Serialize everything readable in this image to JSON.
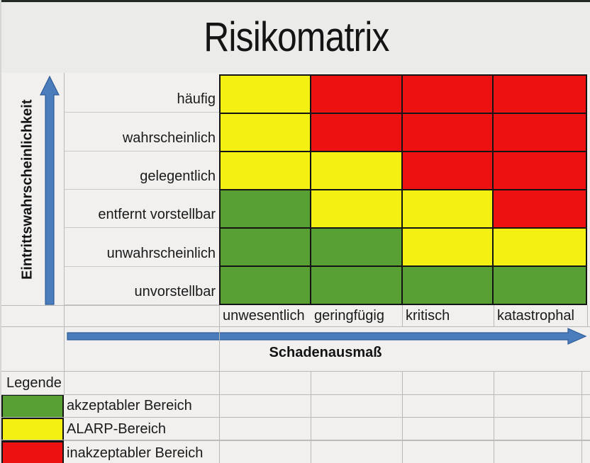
{
  "title": "Risikomatrix",
  "y_axis": {
    "label": "Eintrittswahrscheinlichkeit"
  },
  "x_axis": {
    "label": "Schadenausmaß"
  },
  "matrix": {
    "row_labels": [
      "häufig",
      "wahrscheinlich",
      "gelegentlich",
      "entfernt vorstellbar",
      "unwahrscheinlich",
      "unvorstellbar"
    ],
    "col_labels": [
      "unwesentlich",
      "geringfügig",
      "kritisch",
      "katastrophal"
    ],
    "cells": [
      [
        "yellow",
        "red",
        "red",
        "red"
      ],
      [
        "yellow",
        "red",
        "red",
        "red"
      ],
      [
        "yellow",
        "yellow",
        "red",
        "red"
      ],
      [
        "green",
        "yellow",
        "yellow",
        "red"
      ],
      [
        "green",
        "green",
        "yellow",
        "yellow"
      ],
      [
        "green",
        "green",
        "green",
        "green"
      ]
    ]
  },
  "legend": {
    "title": "Legende",
    "items": [
      {
        "color_key": "green",
        "label": "akzeptabler Bereich"
      },
      {
        "color_key": "yellow",
        "label": "ALARP-Bereich"
      },
      {
        "color_key": "red",
        "label": "inakzeptabler Bereich"
      }
    ]
  },
  "colors": {
    "green": "#58a033",
    "yellow": "#f4f011",
    "red": "#ee1111",
    "arrow_blue": "#4b7cbb",
    "arrow_edge": "#2e5d98"
  },
  "chart_data": {
    "type": "heatmap",
    "title": "Risikomatrix",
    "xlabel": "Schadenausmaß",
    "ylabel": "Eintrittswahrscheinlichkeit",
    "x_categories": [
      "unwesentlich",
      "geringfügig",
      "kritisch",
      "katastrophal"
    ],
    "y_categories_top_to_bottom": [
      "häufig",
      "wahrscheinlich",
      "gelegentlich",
      "entfernt vorstellbar",
      "unwahrscheinlich",
      "unvorstellbar"
    ],
    "cell_zones_top_to_bottom": [
      [
        "yellow",
        "red",
        "red",
        "red"
      ],
      [
        "yellow",
        "red",
        "red",
        "red"
      ],
      [
        "yellow",
        "yellow",
        "red",
        "red"
      ],
      [
        "green",
        "yellow",
        "yellow",
        "red"
      ],
      [
        "green",
        "green",
        "yellow",
        "yellow"
      ],
      [
        "green",
        "green",
        "green",
        "green"
      ]
    ],
    "zone_meaning": {
      "green": "akzeptabler Bereich",
      "yellow": "ALARP-Bereich",
      "red": "inakzeptabler Bereich"
    },
    "zone_colors": {
      "green": "#58a033",
      "yellow": "#f4f011",
      "red": "#ee1111"
    },
    "legend_position": "bottom-left",
    "grid": true
  }
}
